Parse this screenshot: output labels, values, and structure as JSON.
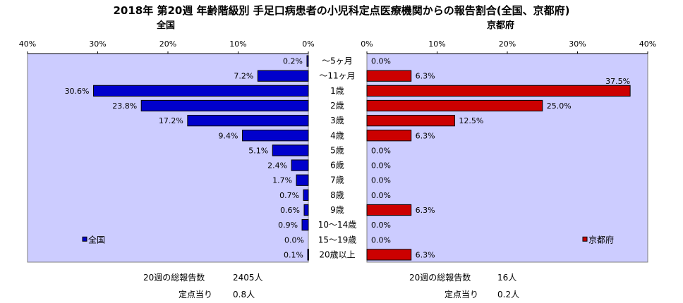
{
  "title": "2018年 第20週 年齢階級別 手足口病患者の小児科定点医療機関からの報告割合(全国、京都府)",
  "chart_data": {
    "type": "bar",
    "orientation": "horizontal",
    "categories": [
      "～5ヶ月",
      "～11ヶ月",
      "1歳",
      "2歳",
      "3歳",
      "4歳",
      "5歳",
      "6歳",
      "7歳",
      "8歳",
      "9歳",
      "10～14歳",
      "15～19歳",
      "20歳以上"
    ],
    "xlim": [
      0,
      40
    ],
    "x_ticks": [
      "0%",
      "10%",
      "20%",
      "30%",
      "40%"
    ],
    "grid": false,
    "panels": [
      {
        "title": "全国",
        "name": "全国",
        "direction": "left",
        "color": "#0000cc",
        "values": [
          0.2,
          7.2,
          30.6,
          23.8,
          17.2,
          9.4,
          5.1,
          2.4,
          1.7,
          0.7,
          0.6,
          0.9,
          0.0,
          0.1
        ],
        "labels": [
          "0.2%",
          "7.2%",
          "30.6%",
          "23.8%",
          "17.2%",
          "9.4%",
          "5.1%",
          "2.4%",
          "1.7%",
          "0.7%",
          "0.6%",
          "0.9%",
          "0.0%",
          "0.1%"
        ],
        "legend": "全国",
        "legend_position": "bottom-left"
      },
      {
        "title": "京都府",
        "name": "京都府",
        "direction": "right",
        "color": "#cc0000",
        "values": [
          0.0,
          6.3,
          37.5,
          25.0,
          12.5,
          6.3,
          0.0,
          0.0,
          0.0,
          0.0,
          6.3,
          0.0,
          0.0,
          6.3
        ],
        "labels": [
          "0.0%",
          "6.3%",
          "37.5%",
          "25.0%",
          "12.5%",
          "6.3%",
          "0.0%",
          "0.0%",
          "0.0%",
          "0.0%",
          "6.3%",
          "0.0%",
          "0.0%",
          "6.3%"
        ],
        "legend": "京都府",
        "legend_position": "bottom-right"
      }
    ]
  },
  "stats": {
    "national_total_label": "20週の総報告数",
    "national_total_value": "2405人",
    "national_per_label": "定点当り",
    "national_per_value": "0.8人",
    "kyoto_total_label": "20週の総報告数",
    "kyoto_total_value": "16人",
    "kyoto_per_label": "定点当り",
    "kyoto_per_value": "0.2人"
  },
  "colors": {
    "plot_background": "#ccccff",
    "national_bar": "#0000cc",
    "kyoto_bar": "#cc0000"
  }
}
